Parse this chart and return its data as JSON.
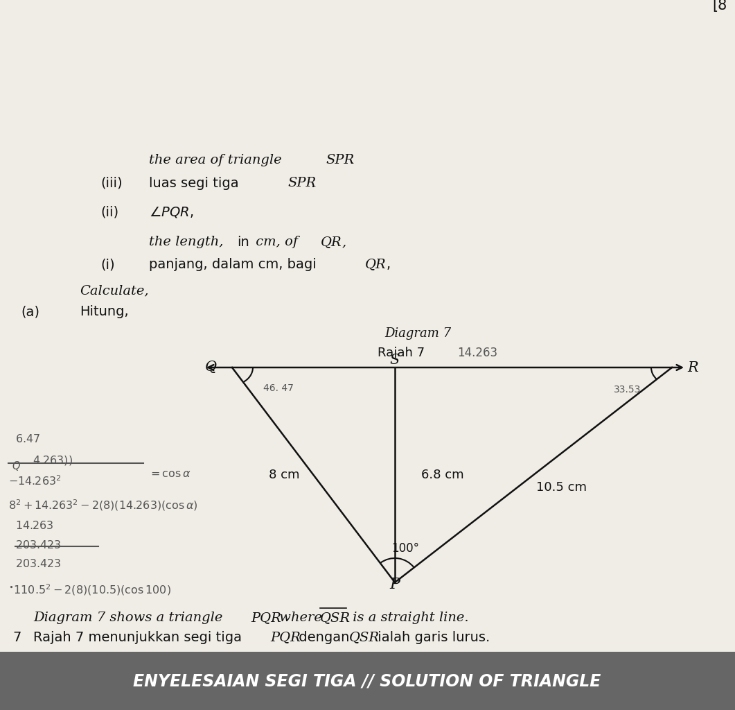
{
  "bg_color": "#e8e4de",
  "header_bg": "#555555",
  "header_text": "ENYELESAIAN SEGI TIGA // SOLUTION OF TRIANGLE",
  "triangle_P": [
    0.575,
    0.845
  ],
  "triangle_Q": [
    0.34,
    0.535
  ],
  "triangle_S": [
    0.575,
    0.535
  ],
  "triangle_R": [
    0.97,
    0.535
  ],
  "label_PQ": "8 cm",
  "label_PR": "10.5 cm",
  "label_PS": "6.8 cm",
  "angle_P_text": "100°",
  "angle_Q_text": "46. 47",
  "angle_R_text": "33.53",
  "text_color": "#111111",
  "hw_color": "#555555"
}
